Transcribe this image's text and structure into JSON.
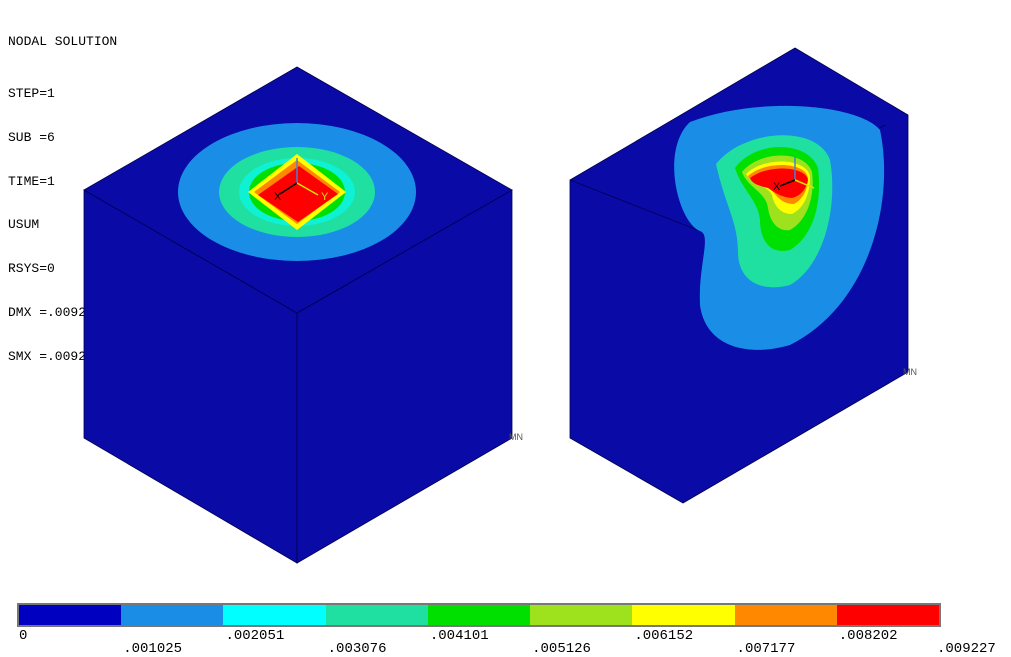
{
  "info": {
    "title": "NODAL SOLUTION",
    "lines": [
      "STEP=1",
      "SUB =6",
      "TIME=1",
      "USUM",
      "RSYS=0",
      "DMX =.009227",
      "SMX =.009227"
    ]
  },
  "axes": {
    "x": "X",
    "y": "Y",
    "z": "Z"
  },
  "node_marker": "MN",
  "legend": {
    "colors": [
      "#0000c0",
      "#1a8ee6",
      "#00ffff",
      "#1fe0a0",
      "#00e000",
      "#9ee21e",
      "#ffff00",
      "#ff8800",
      "#ff0000"
    ],
    "labels": [
      "0",
      ".001025",
      ".002051",
      ".003076",
      ".004101",
      ".005126",
      ".006152",
      ".007177",
      ".008202",
      ".009227"
    ]
  },
  "colors": {
    "bg": "#ffffff",
    "solid": "#0a0aa6",
    "edge": "#000050"
  }
}
